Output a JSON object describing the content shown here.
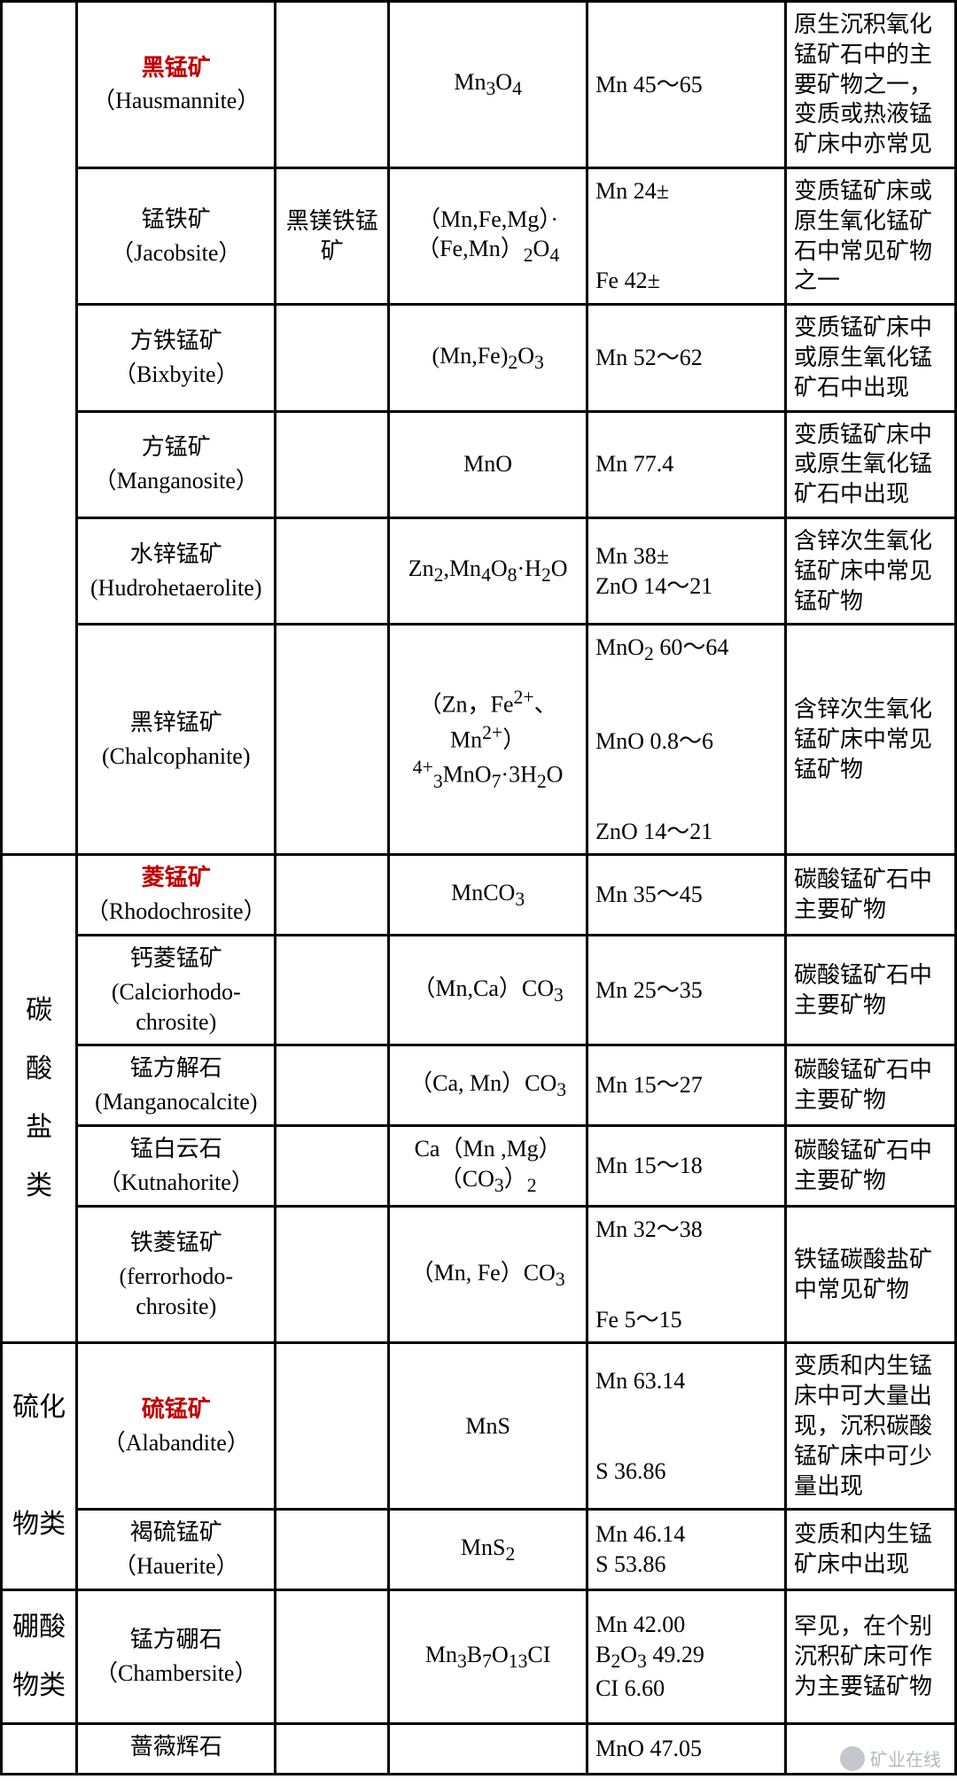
{
  "cols": {
    "cat": 80,
    "name": 210,
    "var": 120,
    "form": 210,
    "comp": 210,
    "desc": 180
  },
  "watermark": "矿业在线",
  "categories": [
    {
      "label": "",
      "rowspan": 6
    },
    {
      "label": "碳\n酸\n盐\n类",
      "rowspan": 5
    },
    {
      "label": "硫化\n\n物类",
      "rowspan": 2
    },
    {
      "label": "硼酸\n物类",
      "rowspan": 1
    },
    {
      "label": "",
      "rowspan": 1
    }
  ],
  "rows": [
    {
      "name_cn": "黑锰矿",
      "name_cn_red": true,
      "name_en": "（Hausmannite）",
      "variant": "",
      "formula": "Mn<sub>3</sub>O<sub>4</sub>",
      "comp": [
        "Mn  45～65"
      ],
      "desc": "原生沉积氧化锰矿石中的主要矿物之一，变质或热液锰矿床中亦常见"
    },
    {
      "name_cn": "锰铁矿",
      "name_cn_red": false,
      "name_en": "（Jacobsite）",
      "variant": "黑镁铁锰矿",
      "formula": "（Mn,Fe,Mg）·（Fe,Mn）<sub>2</sub>O<sub>4</sub>",
      "comp": [
        "Mn  24±",
        "",
        "Fe   42±"
      ],
      "desc": "变质锰矿床或原生氧化锰矿石中常见矿物之一"
    },
    {
      "name_cn": "方铁锰矿",
      "name_cn_red": false,
      "name_en": "（Bixbyite）",
      "variant": "",
      "formula": "(Mn,Fe)<sub>2</sub>O<sub>3</sub>",
      "comp": [
        "Mn  52～62"
      ],
      "desc": "变质锰矿床中或原生氧化锰矿石中出现"
    },
    {
      "name_cn": "方锰矿",
      "name_cn_red": false,
      "name_en": "（Manganosite）",
      "variant": "",
      "formula": "MnO",
      "comp": [
        "Mn  77.4"
      ],
      "desc": "变质锰矿床中或原生氧化锰矿石中出现"
    },
    {
      "name_cn": "水锌锰矿",
      "name_cn_red": false,
      "name_en": "(Hudrohetaerolite)",
      "variant": "",
      "formula": "Zn<sub>2</sub>,Mn<sub>4</sub>O<sub>8</sub>·H<sub>2</sub>O",
      "comp": [
        "Mn   38±",
        "ZnO  14～21"
      ],
      "desc": "含锌次生氧化锰矿床中常见锰矿物"
    },
    {
      "name_cn": "黑锌锰矿",
      "name_cn_red": false,
      "name_en": "(Chalcophanite)",
      "variant": "",
      "formula": "（Zn，Fe<sup>2+</sup>、Mn<sup>2+</sup>）<sup>4+</sup><sub>3</sub>MnO<sub>7</sub>·3H<sub>2</sub>O",
      "comp": [
        "MnO<sub>2</sub> 60～64",
        "",
        "MnO  0.8～6",
        "",
        "ZnO  14～21"
      ],
      "desc": "含锌次生氧化锰矿床中常见锰矿物"
    },
    {
      "name_cn": "菱锰矿",
      "name_cn_red": true,
      "name_en": "（Rhodochrosite）",
      "variant": "",
      "formula": "MnCO<sub>3</sub>",
      "comp": [
        "Mn  35～45"
      ],
      "desc": "碳酸锰矿石中主要矿物"
    },
    {
      "name_cn": "钙菱锰矿",
      "name_cn_red": false,
      "name_en": "(Calciorhodo-chrosite)",
      "variant": "",
      "formula": "（Mn,Ca）CO<sub>3</sub>",
      "comp": [
        "Mn  25～35"
      ],
      "desc": "碳酸锰矿石中主要矿物"
    },
    {
      "name_cn": "锰方解石",
      "name_cn_red": false,
      "name_en": "(Manganocalcite)",
      "variant": "",
      "formula": "（Ca, Mn）CO<sub>3</sub>",
      "comp": [
        "Mn  15～27"
      ],
      "desc": "碳酸锰矿石中主要矿物"
    },
    {
      "name_cn": "锰白云石",
      "name_cn_red": false,
      "name_en": "（Kutnahorite）",
      "variant": "",
      "formula": "Ca（Mn ,Mg）（CO<sub>3</sub>）<sub>2</sub>",
      "comp": [
        "Mn  15～18"
      ],
      "desc": "碳酸锰矿石中主要矿物"
    },
    {
      "name_cn": "铁菱锰矿",
      "name_cn_red": false,
      "name_en": "(ferrorhodo-chrosite)",
      "variant": "",
      "formula": "（Mn, Fe）CO<sub>3</sub>",
      "comp": [
        "Mn  32～38",
        "",
        "Fe  5～15"
      ],
      "desc": "铁锰碳酸盐矿中常见矿物"
    },
    {
      "name_cn": "硫锰矿",
      "name_cn_red": true,
      "name_en": "（Alabandite）",
      "variant": "",
      "formula": "MnS",
      "comp": [
        "Mn  63.14",
        "",
        "S    36.86"
      ],
      "desc": "变质和内生锰床中可大量出现，沉积碳酸锰矿床中可少量出现"
    },
    {
      "name_cn": "褐硫锰矿",
      "name_cn_red": false,
      "name_en": "（Hauerite）",
      "variant": "",
      "formula": "MnS<sub>2</sub>",
      "comp": [
        "Mn  46.14",
        "S    53.86"
      ],
      "desc": "变质和内生锰矿床中出现"
    },
    {
      "name_cn": "锰方硼石",
      "name_cn_red": false,
      "name_en": "（Chambersite）",
      "variant": "",
      "formula": "Mn<sub>3</sub>B<sub>7</sub>O<sub>13</sub>CI",
      "comp": [
        "Mn  42.00",
        "B<sub>2</sub>O<sub>3</sub>  49.29",
        "CI   6.60"
      ],
      "desc": "罕见，在个别沉积矿床可作为主要锰矿物"
    },
    {
      "name_cn": "蔷薇辉石",
      "name_cn_red": false,
      "name_en": "",
      "variant": "",
      "formula": "",
      "comp": [
        "MnO  47.05"
      ],
      "desc": ""
    }
  ]
}
